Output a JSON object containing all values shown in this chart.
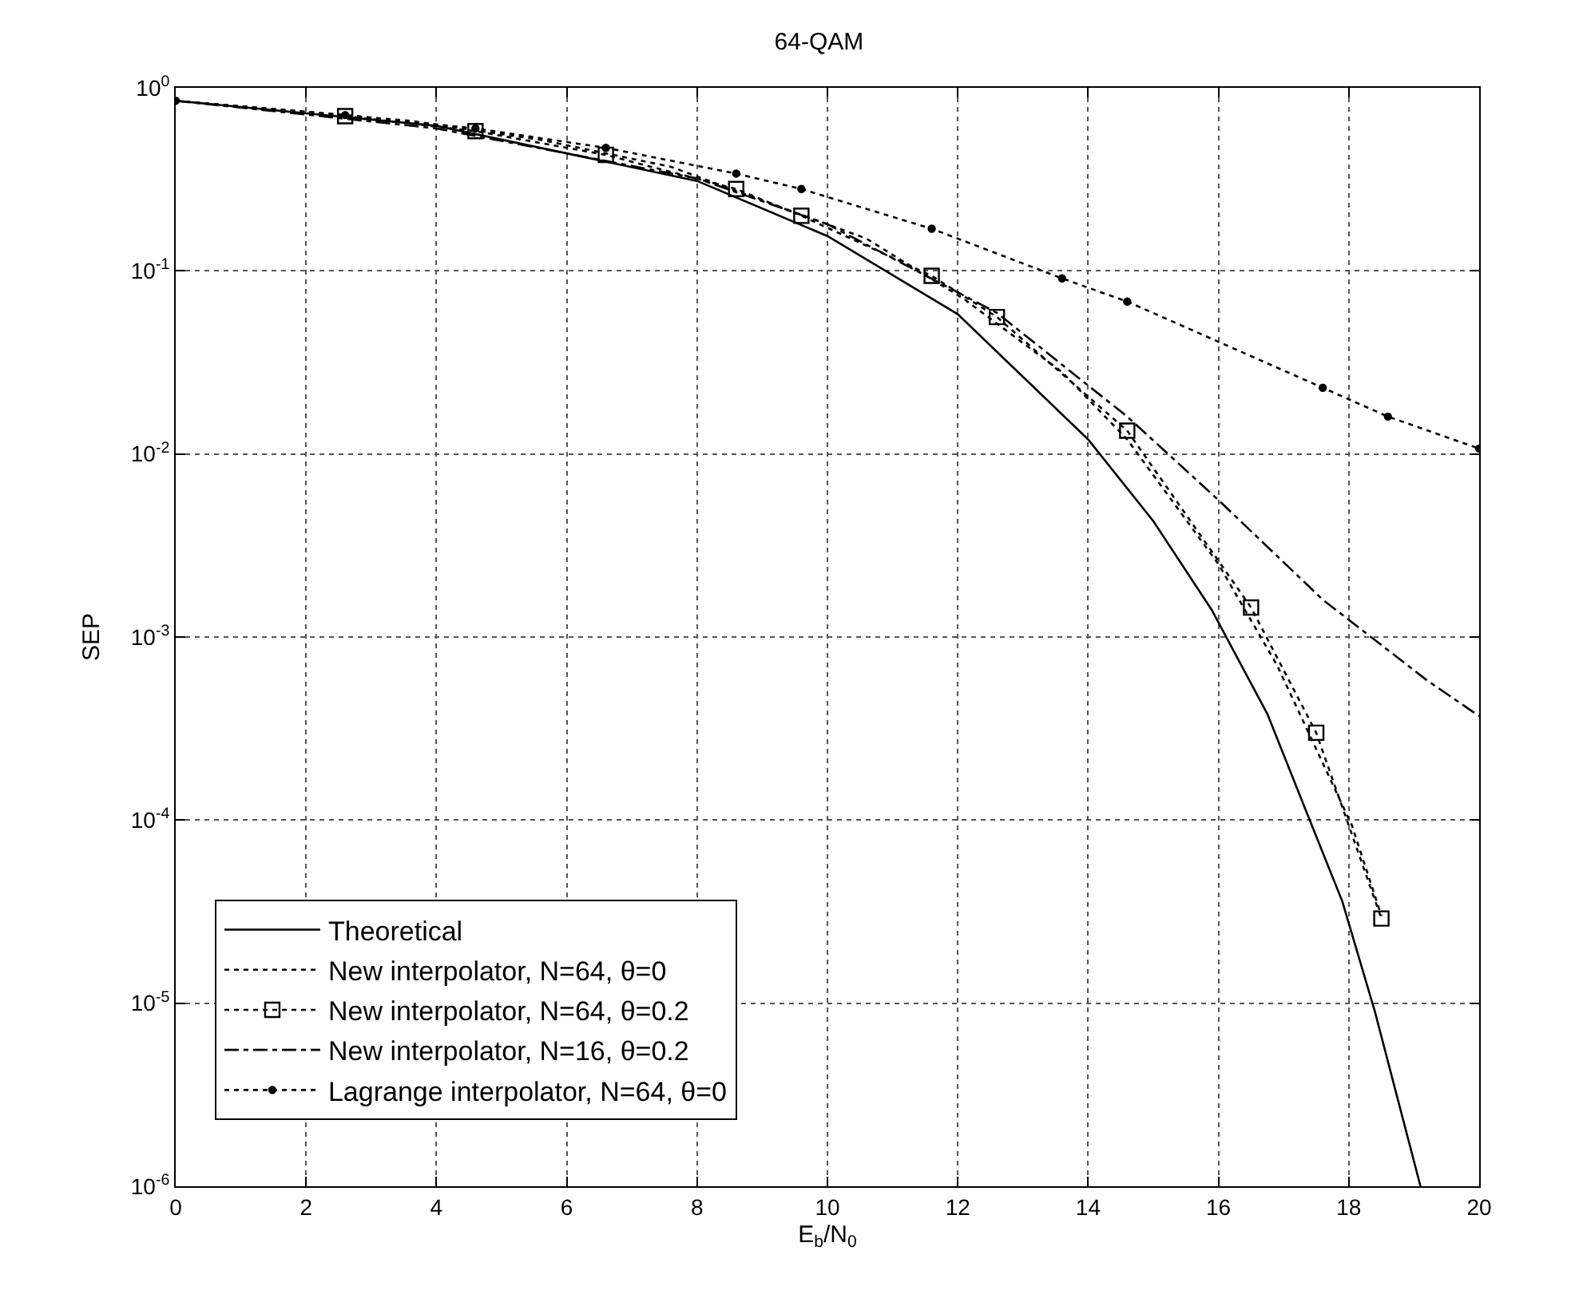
{
  "chart_data": {
    "type": "line",
    "title": "64-QAM",
    "xlabel": "E$_{b}$/N$_{0}$",
    "ylabel": "SEP",
    "log": "y",
    "grid": true,
    "legend": "bottom left",
    "xlim": [
      0,
      20
    ],
    "xticks": [
      0,
      2,
      4,
      6,
      8,
      10,
      12,
      14,
      16,
      18,
      20
    ],
    "ylim": [
      1e-06,
      1
    ],
    "yticks": [
      {
        "value": 1,
        "label": "10$^{0}$"
      },
      {
        "value": 0.1,
        "label": "10$^{-1}$"
      },
      {
        "value": 0.01,
        "label": "10$^{-2}$"
      },
      {
        "value": 0.001,
        "label": "10$^{-3}$"
      },
      {
        "value": 0.0001,
        "label": "10$^{-4}$"
      },
      {
        "value": 1e-05,
        "label": "10$^{-5}$"
      },
      {
        "value": 1e-06,
        "label": "10$^{-6}$"
      }
    ],
    "series": [
      {
        "name": "Theoretical",
        "color": "#000000",
        "line_style": "solid",
        "marker": "none",
        "x": [
          0,
          4,
          8,
          10,
          12,
          14,
          15,
          15.9,
          16.75,
          17.4,
          17.9,
          18.4,
          19.1
        ],
        "values": [
          0.85,
          0.62,
          0.31,
          0.155,
          0.058,
          0.012,
          0.0043,
          0.0014,
          0.00038,
          0.0001,
          3.6e-05,
          9e-06,
          1e-06
        ]
      },
      {
        "name": "New interpolator, N=64, θ=0",
        "color": "#000000",
        "line_style": "dotted",
        "marker": "none",
        "x": [
          0,
          3.6,
          5.6,
          7.6,
          10.6,
          12.1,
          13.6,
          14.6,
          16,
          16.9,
          18.05,
          18.5
        ],
        "values": [
          0.85,
          0.66,
          0.52,
          0.37,
          0.15,
          0.07,
          0.028,
          0.012,
          0.0025,
          0.0007,
          9.3e-05,
          3e-05
        ]
      },
      {
        "name": "New interpolator, N=64, θ=0.2",
        "color": "#000000",
        "line_style": "dotted",
        "marker": "square",
        "x": [
          2.6,
          4.6,
          6.6,
          8.6,
          9.6,
          11.6,
          12.6,
          14.6,
          16.5,
          17.5,
          18.5
        ],
        "values": [
          0.7,
          0.58,
          0.43,
          0.28,
          0.2,
          0.094,
          0.056,
          0.0134,
          0.00145,
          0.0003,
          2.9e-05
        ]
      },
      {
        "name": "New interpolator, N=16, θ=0.2",
        "color": "#000000",
        "line_style": "dashdot",
        "marker": "none",
        "x": [
          0,
          4,
          8,
          10,
          12.6,
          14.6,
          16,
          17.6,
          19.2,
          20
        ],
        "values": [
          0.85,
          0.6,
          0.32,
          0.18,
          0.059,
          0.016,
          0.0056,
          0.0016,
          0.00058,
          0.00037
        ]
      },
      {
        "name": "Lagrange interpolator, N=64, θ=0",
        "color": "#000000",
        "line_style": "dotted",
        "marker": "circle",
        "x": [
          0,
          2.6,
          4.6,
          6.6,
          8.6,
          9.6,
          11.6,
          13.6,
          14.6,
          17.6,
          18.6,
          20
        ],
        "values": [
          0.85,
          0.71,
          0.6,
          0.47,
          0.34,
          0.28,
          0.17,
          0.091,
          0.068,
          0.023,
          0.016,
          0.0107
        ]
      }
    ]
  }
}
